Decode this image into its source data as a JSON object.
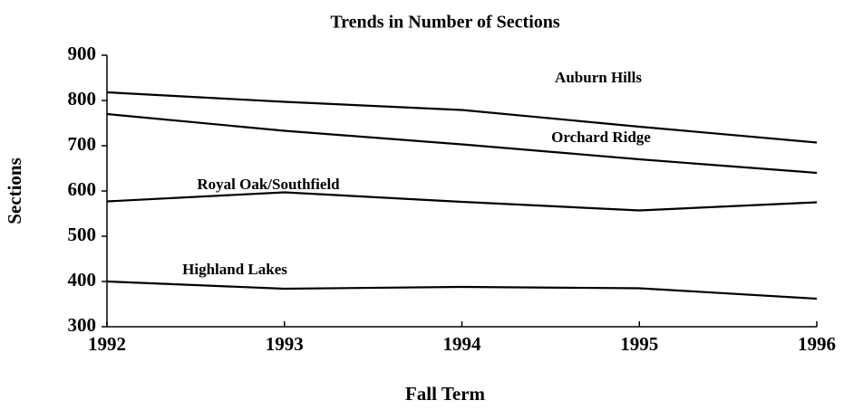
{
  "chart_data": {
    "type": "line",
    "title": "Trends in Number of Sections",
    "x_label": "Fall Term",
    "y_label": "Sections",
    "x": [
      1992,
      1993,
      1994,
      1995,
      1996
    ],
    "xlim": [
      1992,
      1996
    ],
    "xticks": [
      1992,
      1993,
      1994,
      1995,
      1996
    ],
    "ylim": [
      300,
      900
    ],
    "yticks": [
      300,
      400,
      500,
      600,
      700,
      800,
      900
    ],
    "series": [
      {
        "name": "Auburn Hills",
        "color": "#000000",
        "values": [
          818,
          797,
          779,
          742,
          707
        ]
      },
      {
        "name": "Orchard Ridge",
        "color": "#000000",
        "values": [
          770,
          733,
          703,
          670,
          640
        ]
      },
      {
        "name": "Royal Oak/Southfield",
        "color": "#000000",
        "values": [
          577,
          597,
          576,
          557,
          575
        ]
      },
      {
        "name": "Highland Lakes",
        "color": "#000000",
        "values": [
          400,
          384,
          388,
          385,
          362
        ]
      }
    ]
  }
}
